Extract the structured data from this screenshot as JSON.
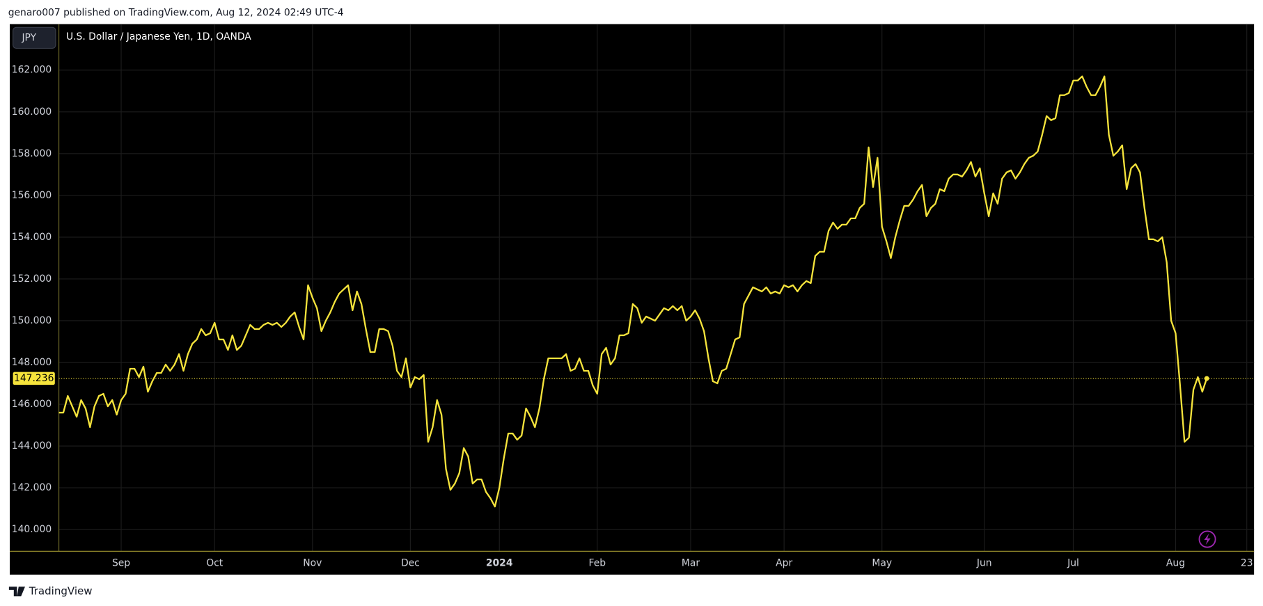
{
  "page": {
    "published": "genaro007 published on TradingView.com, Aug 12, 2024 02:49 UTC-4",
    "symbol_button": "JPY",
    "brand": "TradingView"
  },
  "chart_data": {
    "type": "line",
    "title": "U.S. Dollar / Japanese Yen, 1D, OANDA",
    "color": "#f6e43c",
    "grid": true,
    "ylim": [
      138.96,
      164.2
    ],
    "yticks": [
      {
        "value": 140,
        "label": "140.000"
      },
      {
        "value": 142,
        "label": "142.000"
      },
      {
        "value": 144,
        "label": "144.000"
      },
      {
        "value": 146,
        "label": "146.000"
      },
      {
        "value": 148,
        "label": "148.000"
      },
      {
        "value": 150,
        "label": "150.000"
      },
      {
        "value": 152,
        "label": "152.000"
      },
      {
        "value": 154,
        "label": "154.000"
      },
      {
        "value": 156,
        "label": "156.000"
      },
      {
        "value": 158,
        "label": "158.000"
      },
      {
        "value": 160,
        "label": "160.000"
      },
      {
        "value": 162,
        "label": "162.000"
      }
    ],
    "last_price": 147.236,
    "categories": [
      null,
      null,
      null,
      null,
      null,
      null,
      null,
      null,
      null,
      null,
      null,
      null,
      null,
      null,
      "Sep",
      null,
      null,
      null,
      null,
      null,
      null,
      null,
      null,
      null,
      null,
      null,
      null,
      null,
      null,
      null,
      null,
      null,
      null,
      null,
      null,
      "Oct",
      null,
      null,
      null,
      null,
      null,
      null,
      null,
      null,
      null,
      null,
      null,
      null,
      null,
      null,
      null,
      null,
      null,
      null,
      null,
      null,
      null,
      "Nov",
      null,
      null,
      null,
      null,
      null,
      null,
      null,
      null,
      null,
      null,
      null,
      null,
      null,
      null,
      null,
      null,
      null,
      null,
      null,
      null,
      null,
      "Dec",
      null,
      null,
      null,
      null,
      null,
      null,
      null,
      null,
      null,
      null,
      null,
      null,
      null,
      null,
      null,
      null,
      null,
      null,
      null,
      "2024",
      null,
      null,
      null,
      null,
      null,
      null,
      null,
      null,
      null,
      null,
      null,
      null,
      null,
      null,
      null,
      null,
      null,
      null,
      null,
      null,
      null,
      "Feb",
      null,
      null,
      null,
      null,
      null,
      null,
      null,
      null,
      null,
      null,
      null,
      null,
      null,
      null,
      null,
      null,
      null,
      null,
      null,
      null,
      "Mar",
      null,
      null,
      null,
      null,
      null,
      null,
      null,
      null,
      null,
      null,
      null,
      null,
      null,
      null,
      null,
      null,
      null,
      null,
      null,
      null,
      "Apr",
      null,
      null,
      null,
      null,
      null,
      null,
      null,
      null,
      null,
      null,
      null,
      null,
      null,
      null,
      null,
      null,
      null,
      null,
      null,
      null,
      null,
      "May",
      null,
      null,
      null,
      null,
      null,
      null,
      null,
      null,
      null,
      null,
      null,
      null,
      null,
      null,
      null,
      null,
      null,
      null,
      null,
      null,
      null,
      null,
      "Jun",
      null,
      null,
      null,
      null,
      null,
      null,
      null,
      null,
      null,
      null,
      null,
      null,
      null,
      null,
      null,
      null,
      null,
      null,
      null,
      "Jul",
      null,
      null,
      null,
      null,
      null,
      null,
      null,
      null,
      null,
      null,
      null,
      null,
      null,
      null,
      null,
      null,
      null,
      null,
      null,
      null,
      null,
      null,
      "Aug",
      null,
      null,
      null,
      null,
      null,
      null,
      null,
      null,
      null,
      null,
      null,
      null,
      null,
      null,
      null,
      "23"
    ],
    "values": [
      145.6,
      145.6,
      146.4,
      145.9,
      145.4,
      146.2,
      145.8,
      144.9,
      145.9,
      146.4,
      146.5,
      145.9,
      146.2,
      145.5,
      146.2,
      146.5,
      147.7,
      147.7,
      147.3,
      147.8,
      146.6,
      147.1,
      147.5,
      147.5,
      147.9,
      147.6,
      147.9,
      148.4,
      147.6,
      148.4,
      148.9,
      149.1,
      149.6,
      149.3,
      149.4,
      149.9,
      149.1,
      149.1,
      148.6,
      149.3,
      148.6,
      148.8,
      149.3,
      149.8,
      149.6,
      149.6,
      149.8,
      149.9,
      149.8,
      149.9,
      149.7,
      149.9,
      150.2,
      150.4,
      149.7,
      149.1,
      151.7,
      151.1,
      150.6,
      149.5,
      150.0,
      150.4,
      150.9,
      151.3,
      151.5,
      151.7,
      150.5,
      151.4,
      150.8,
      149.6,
      148.5,
      148.5,
      149.6,
      149.6,
      149.5,
      148.8,
      147.6,
      147.3,
      148.2,
      146.8,
      147.3,
      147.2,
      147.4,
      144.2,
      144.9,
      146.2,
      145.5,
      142.9,
      141.9,
      142.2,
      142.7,
      143.9,
      143.5,
      142.2,
      142.4,
      142.4,
      141.8,
      141.5,
      141.1,
      142.0,
      143.4,
      144.6,
      144.6,
      144.3,
      144.5,
      145.8,
      145.4,
      144.9,
      145.8,
      147.2,
      148.2,
      148.2,
      148.2,
      148.2,
      148.4,
      147.6,
      147.7,
      148.2,
      147.6,
      147.6,
      146.9,
      146.5,
      148.4,
      148.7,
      147.9,
      148.2,
      149.3,
      149.3,
      149.4,
      150.8,
      150.6,
      149.9,
      150.2,
      150.1,
      150.0,
      150.3,
      150.6,
      150.5,
      150.7,
      150.5,
      150.7,
      150.0,
      150.2,
      150.5,
      150.1,
      149.5,
      148.2,
      147.1,
      147.0,
      147.6,
      147.7,
      148.4,
      149.1,
      149.2,
      150.8,
      151.2,
      151.6,
      151.5,
      151.4,
      151.6,
      151.3,
      151.4,
      151.3,
      151.7,
      151.6,
      151.7,
      151.4,
      151.7,
      151.9,
      151.8,
      153.1,
      153.3,
      153.3,
      154.3,
      154.7,
      154.4,
      154.6,
      154.6,
      154.9,
      154.9,
      155.4,
      155.6,
      158.3,
      156.4,
      157.8,
      154.5,
      153.8,
      153.0,
      154.0,
      154.8,
      155.5,
      155.5,
      155.8,
      156.2,
      156.5,
      155.0,
      155.4,
      155.6,
      156.3,
      156.2,
      156.8,
      157.0,
      157.0,
      156.9,
      157.2,
      157.6,
      156.9,
      157.3,
      156.1,
      155.0,
      156.1,
      155.6,
      156.8,
      157.1,
      157.2,
      156.8,
      157.1,
      157.5,
      157.8,
      157.9,
      158.1,
      158.9,
      159.8,
      159.6,
      159.7,
      160.8,
      160.8,
      160.9,
      161.5,
      161.5,
      161.7,
      161.2,
      160.8,
      160.8,
      161.2,
      161.7,
      158.9,
      157.9,
      158.1,
      158.4,
      156.3,
      157.3,
      157.5,
      157.1,
      155.4,
      153.9,
      153.9,
      153.8,
      154.0,
      152.8,
      150.0,
      149.4,
      146.9,
      144.2,
      144.4,
      146.7,
      147.3,
      146.6,
      147.236,
      null,
      null,
      null,
      null,
      null,
      null,
      null,
      null,
      null
    ]
  }
}
